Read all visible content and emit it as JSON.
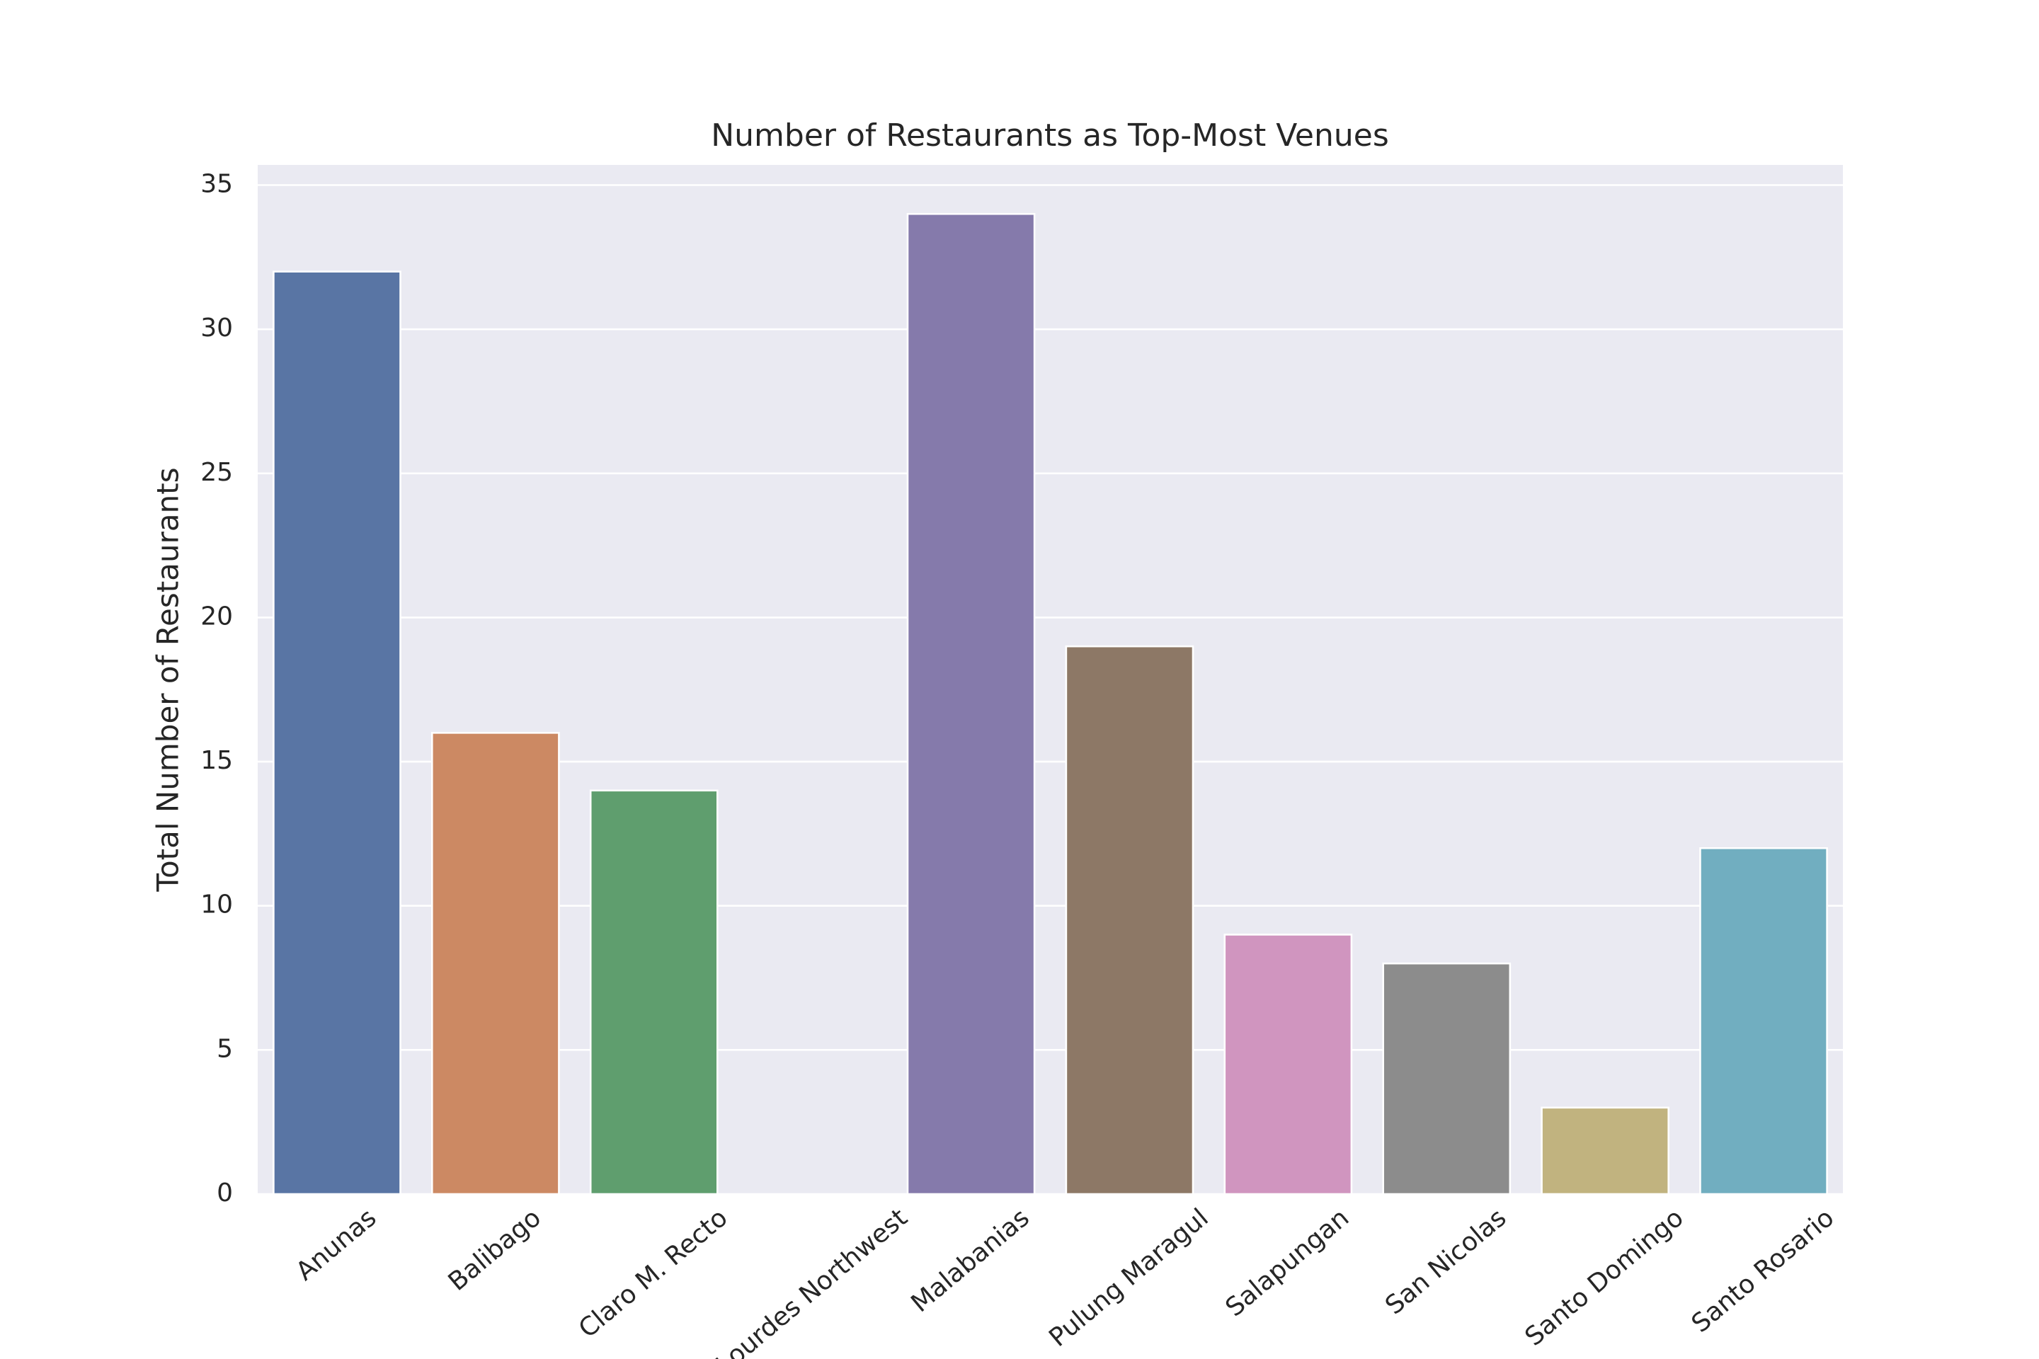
{
  "chart_data": {
    "type": "bar",
    "title": "Number of Restaurants as Top-Most Venues",
    "y_label": "Total Number of Restaurants",
    "categories": [
      "Anunas",
      "Balibago",
      "Claro M. Recto",
      "Lourdes Northwest",
      "Malabanias",
      "Pulung Maragul",
      "Salapungan",
      "San Nicolas",
      "Santo Domingo",
      "Santo Rosario"
    ],
    "values": [
      32,
      16,
      14,
      0,
      34,
      19,
      9,
      8,
      3,
      12
    ],
    "colors": [
      "#5975a4",
      "#cc8963",
      "#5f9e6e",
      "#b55d60",
      "#857aab",
      "#8d7866",
      "#d095bf",
      "#8c8c8c",
      "#c1b37f",
      "#71aec0"
    ],
    "ylim": [
      0,
      35.7
    ],
    "yticks": [
      0,
      5,
      10,
      15,
      20,
      25,
      30,
      35
    ],
    "grid": true
  }
}
